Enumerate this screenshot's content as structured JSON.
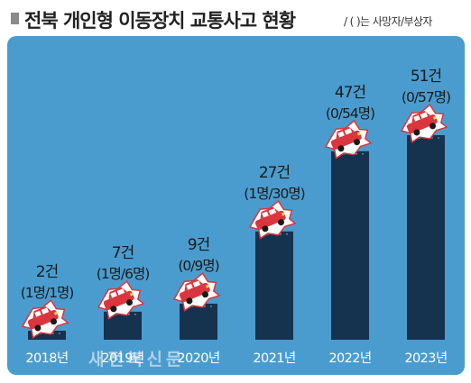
{
  "header": {
    "title": "전북 개인형 이동장치 교통사고 현황",
    "legend_note": "/ (  )는 사망자/부상자"
  },
  "chart_data": {
    "type": "bar",
    "title": "전북 개인형 이동장치 교통사고 현황",
    "categories": [
      "2018년",
      "2019년",
      "2020년",
      "2021년",
      "2022년",
      "2023년"
    ],
    "values": [
      2,
      7,
      9,
      27,
      47,
      51
    ],
    "value_labels": [
      "2건",
      "7건",
      "9건",
      "27건",
      "47건",
      "51건"
    ],
    "sub_labels": [
      "(1명/1명)",
      "(1명/6명)",
      "(0/9명)",
      "(1명/30명)",
      "(0/54명)",
      "(0/57명)"
    ],
    "deaths": [
      1,
      1,
      0,
      1,
      0,
      0
    ],
    "injuries": [
      1,
      6,
      9,
      30,
      54,
      57
    ],
    "ylim": [
      0,
      51
    ],
    "grid": false,
    "legend": "top-right"
  },
  "colors": {
    "background": "#4a9ccf",
    "bar": "#15324e",
    "car": "#d9363e",
    "text": "#1a1a1a"
  },
  "watermark": "새전북신문"
}
